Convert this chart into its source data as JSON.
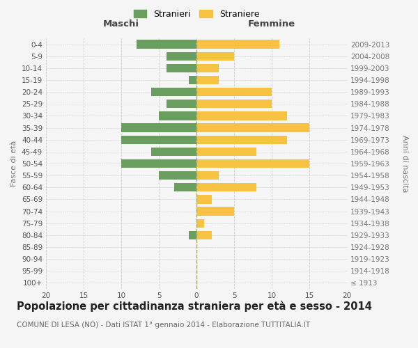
{
  "age_groups": [
    "100+",
    "95-99",
    "90-94",
    "85-89",
    "80-84",
    "75-79",
    "70-74",
    "65-69",
    "60-64",
    "55-59",
    "50-54",
    "45-49",
    "40-44",
    "35-39",
    "30-34",
    "25-29",
    "20-24",
    "15-19",
    "10-14",
    "5-9",
    "0-4"
  ],
  "birth_years": [
    "≤ 1913",
    "1914-1918",
    "1919-1923",
    "1924-1928",
    "1929-1933",
    "1934-1938",
    "1939-1943",
    "1944-1948",
    "1949-1953",
    "1954-1958",
    "1959-1963",
    "1964-1968",
    "1969-1973",
    "1974-1978",
    "1979-1983",
    "1984-1988",
    "1989-1993",
    "1994-1998",
    "1999-2003",
    "2004-2008",
    "2009-2013"
  ],
  "maschi": [
    0,
    0,
    0,
    0,
    1,
    0,
    0,
    0,
    3,
    5,
    10,
    6,
    10,
    10,
    5,
    4,
    6,
    1,
    4,
    4,
    8
  ],
  "femmine": [
    0,
    0,
    0,
    0,
    2,
    1,
    5,
    2,
    8,
    3,
    15,
    8,
    12,
    15,
    12,
    10,
    10,
    3,
    3,
    5,
    11
  ],
  "color_maschi": "#6a9e5e",
  "color_femmine": "#f5c242",
  "xlim": 20,
  "title": "Popolazione per cittadinanza straniera per età e sesso - 2014",
  "subtitle": "COMUNE DI LESA (NO) - Dati ISTAT 1° gennaio 2014 - Elaborazione TUTTITALIA.IT",
  "ylabel_left": "Fasce di età",
  "ylabel_right": "Anni di nascita",
  "xlabel_maschi": "Maschi",
  "xlabel_femmine": "Femmine",
  "legend_maschi": "Stranieri",
  "legend_femmine": "Straniere",
  "bg_color": "#f5f5f5",
  "grid_color": "#cccccc",
  "title_fontsize": 10.5,
  "subtitle_fontsize": 7.5,
  "tick_fontsize": 7.5,
  "label_fontsize": 9.5,
  "bar_height": 0.72
}
